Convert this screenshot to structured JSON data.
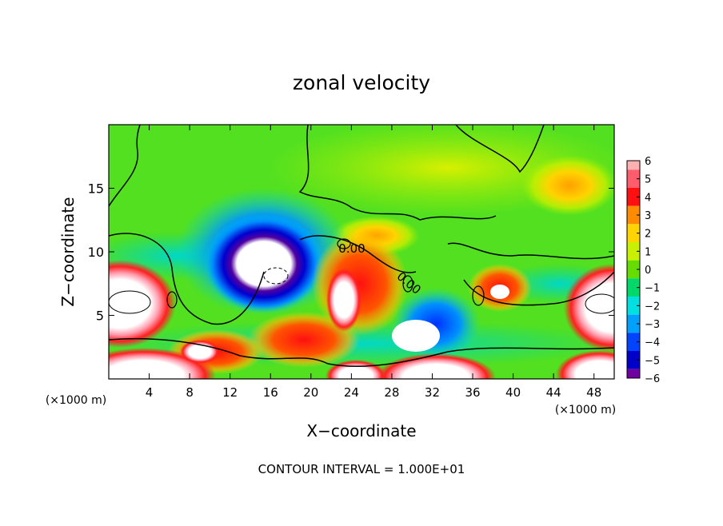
{
  "chart_data": {
    "type": "heatmap",
    "title": "zonal velocity",
    "xlabel": "X−coordinate",
    "ylabel": "Z−coordinate",
    "x_unit": "(×1000 m)",
    "y_unit": "(×1000 m)",
    "x_ticks": [
      4,
      8,
      12,
      16,
      20,
      24,
      28,
      32,
      36,
      40,
      44,
      48
    ],
    "y_ticks": [
      5,
      10,
      15
    ],
    "xlim": [
      0,
      50
    ],
    "ylim": [
      0,
      20
    ],
    "footer": "CONTOUR INTERVAL = 1.000E+01",
    "contour_label": "0.00",
    "colorbar": {
      "ticks": [
        6,
        5,
        4,
        3,
        2,
        1,
        0,
        -1,
        -2,
        -3,
        -4,
        -5,
        -6
      ],
      "colors": [
        "#ffb0b0",
        "#ff5c6c",
        "#ff1010",
        "#ff8c00",
        "#ffd400",
        "#c8f000",
        "#66dd00",
        "#00d86a",
        "#00e0e0",
        "#00a0ff",
        "#0044ff",
        "#0000c8",
        "#7000a0"
      ]
    },
    "grid": false,
    "legend": "colorbar-right"
  }
}
